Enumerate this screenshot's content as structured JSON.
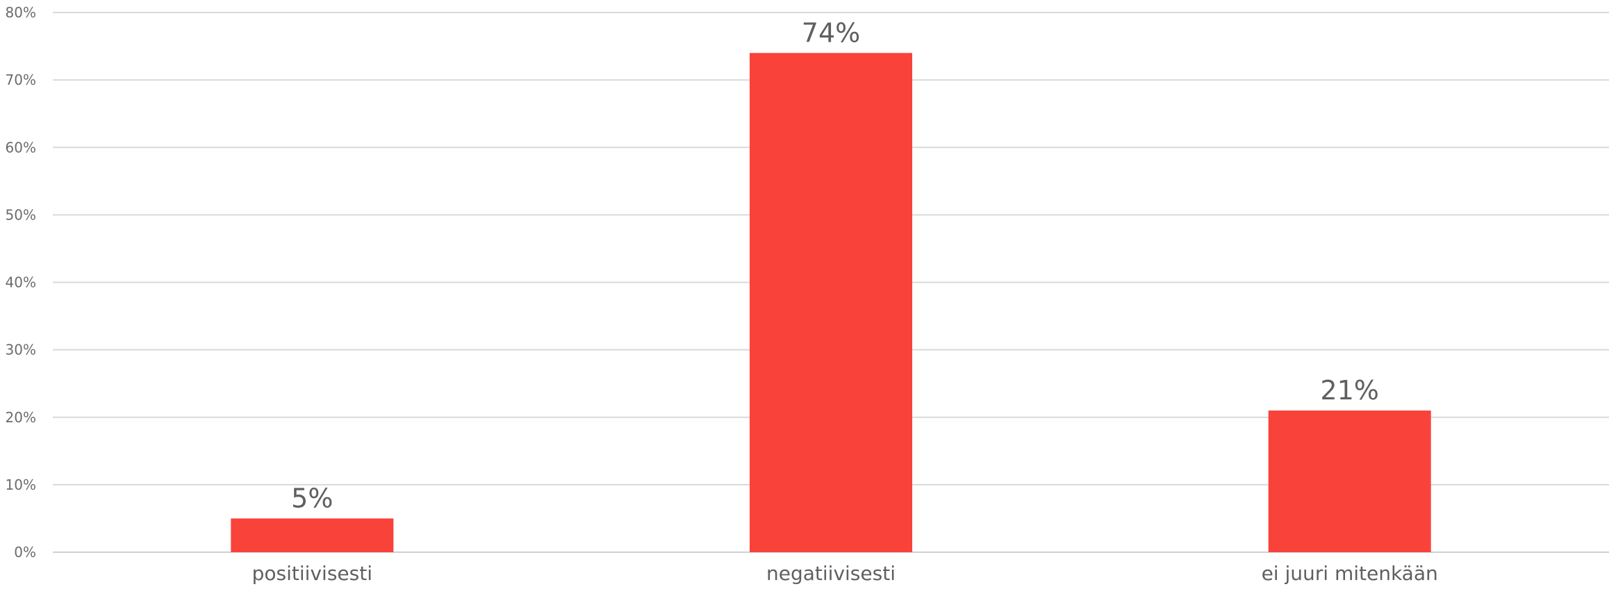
{
  "chart_data": {
    "type": "bar",
    "title": "",
    "xlabel": "",
    "ylabel": "",
    "categories": [
      "positiivisesti",
      "negatiivisesti",
      "ei juuri mitenkään"
    ],
    "values": [
      5,
      74,
      21
    ],
    "value_labels": [
      "5%",
      "74%",
      "21%"
    ],
    "ylim": [
      0,
      80
    ],
    "y_ticks": [
      0,
      10,
      20,
      30,
      40,
      50,
      60,
      70,
      80
    ],
    "y_tick_labels": [
      "0%",
      "10%",
      "20%",
      "30%",
      "40%",
      "50%",
      "60%",
      "70%",
      "80%"
    ],
    "grid": true,
    "legend": "none",
    "bar_color": "#f9423a",
    "grid_color": "#d9d9d9",
    "text_color": "#5f5f5f"
  }
}
